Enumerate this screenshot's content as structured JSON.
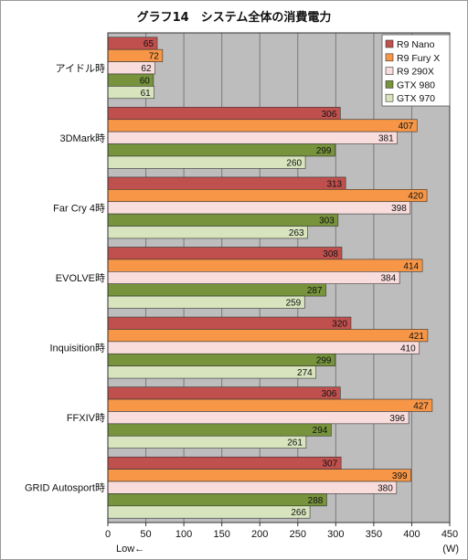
{
  "chart_data": {
    "type": "bar",
    "orientation": "horizontal",
    "title": "グラフ14　システム全体の消費電力",
    "categories": [
      "アイドル時",
      "3DMark時",
      "Far Cry 4時",
      "EVOLVE時",
      "Inquisition時",
      "FFXIV時",
      "GRID Autosport時"
    ],
    "series": [
      {
        "name": "R9 Nano",
        "color": "#c0504d",
        "values": [
          65,
          306,
          313,
          308,
          320,
          306,
          307
        ]
      },
      {
        "name": "R9 Fury X",
        "color": "#f79646",
        "values": [
          72,
          407,
          420,
          414,
          421,
          427,
          399
        ]
      },
      {
        "name": "R9 290X",
        "color": "#f9dcdc",
        "values": [
          62,
          381,
          398,
          384,
          410,
          396,
          380
        ]
      },
      {
        "name": "GTX 980",
        "color": "#77933c",
        "values": [
          60,
          299,
          303,
          287,
          299,
          294,
          288
        ]
      },
      {
        "name": "GTX 970",
        "color": "#d7e4bd",
        "values": [
          61,
          260,
          263,
          259,
          274,
          261,
          266
        ]
      }
    ],
    "xlim": [
      0,
      450
    ],
    "xticks": [
      0,
      50,
      100,
      150,
      200,
      250,
      300,
      350,
      400,
      450
    ],
    "xlabel_unit": "(W)",
    "low_label": "Low←",
    "grid": true,
    "legend_position": "top-right"
  }
}
